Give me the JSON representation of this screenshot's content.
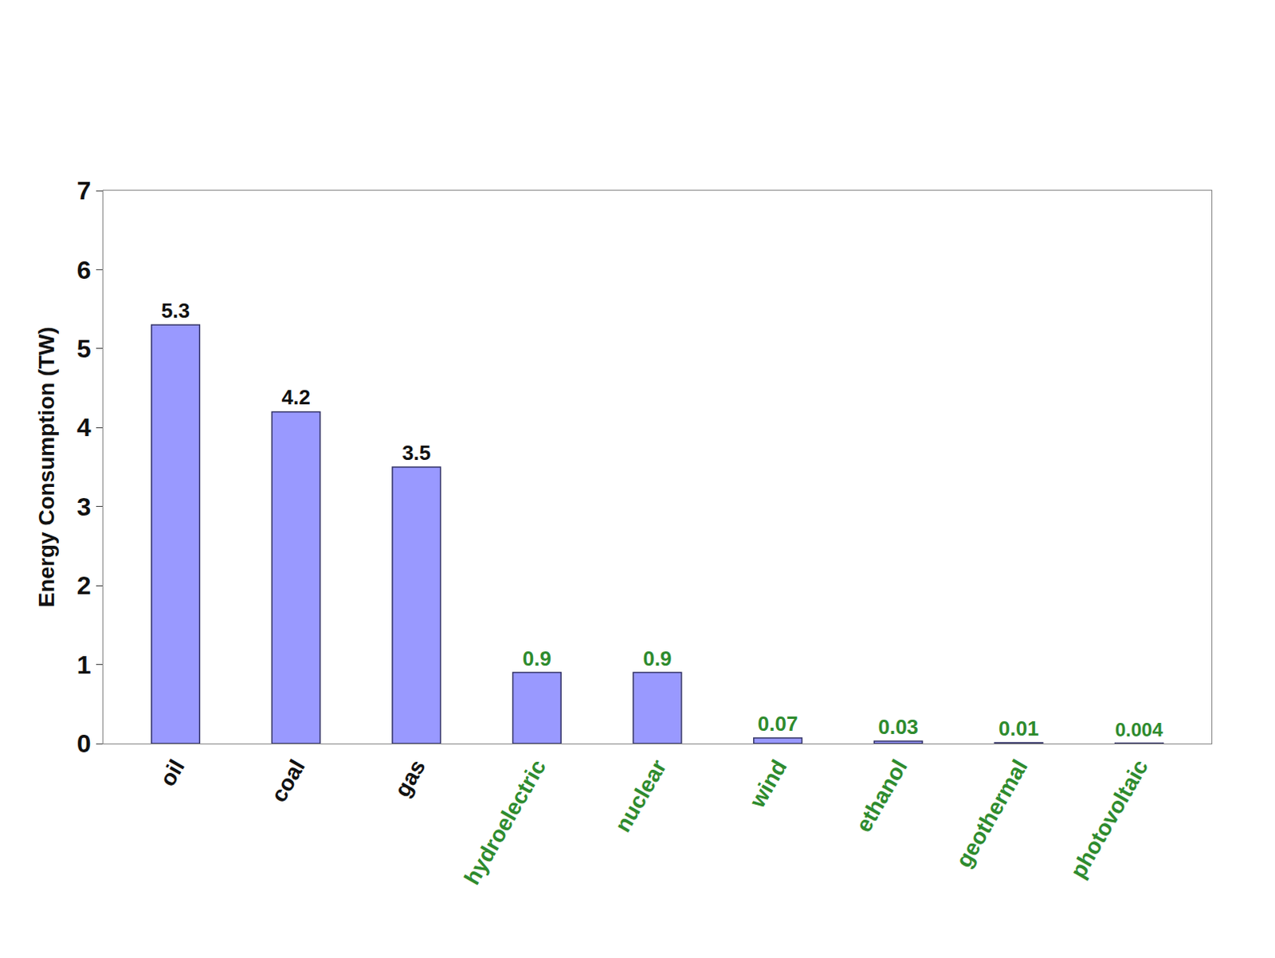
{
  "chart_data": {
    "type": "bar",
    "y_label": "Energy Consumption (TW)",
    "categories": [
      "oil",
      "coal",
      "gas",
      "hydroelectric",
      "nuclear",
      "wind",
      "ethanol",
      "geothermal",
      "photovoltaic"
    ],
    "values": [
      5.3,
      4.2,
      3.5,
      0.9,
      0.9,
      0.07,
      0.03,
      0.01,
      0.004
    ],
    "color": "#9999ff",
    "ylim": [
      0,
      7
    ],
    "yticks": [
      0,
      1,
      2,
      3,
      4,
      5,
      6,
      7
    ],
    "grid": false,
    "data_labels": true
  }
}
